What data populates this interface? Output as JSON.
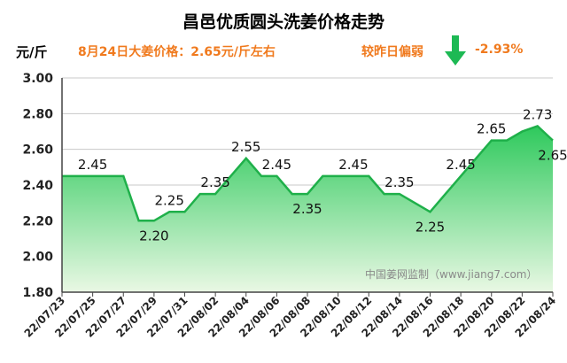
{
  "header": {
    "title": "昌邑优质圆头洗姜价格走势",
    "unit": "元/斤",
    "note_left": "8月24日大姜价格：2.65元/斤左右",
    "note_right": "较昨日偏弱",
    "note_change": "-2.93%",
    "trend_icon": "down-arrow-icon",
    "accent_color": "#f07a1e",
    "arrow_color": "#1db954"
  },
  "watermark": "中国姜网监制（www.jiang7.com）",
  "chart_data": {
    "type": "area",
    "title": "昌邑优质圆头洗姜价格走势",
    "ylabel": "元/斤",
    "xlabel": "",
    "ylim": [
      1.8,
      3.0
    ],
    "y_ticks": [
      "1.80",
      "2.00",
      "2.20",
      "2.40",
      "2.60",
      "2.80",
      "3.00"
    ],
    "grid": true,
    "x_ticks": [
      "22/07/23",
      "22/07/25",
      "22/07/27",
      "22/07/29",
      "22/07/31",
      "22/08/02",
      "22/08/04",
      "22/08/06",
      "22/08/08",
      "22/08/10",
      "22/08/12",
      "22/08/14",
      "22/08/16",
      "22/08/18",
      "22/08/20",
      "22/08/22",
      "22/08/24"
    ],
    "x": [
      "22/07/23",
      "22/07/24",
      "22/07/25",
      "22/07/26",
      "22/07/27",
      "22/07/28",
      "22/07/29",
      "22/07/30",
      "22/07/31",
      "22/08/01",
      "22/08/02",
      "22/08/03",
      "22/08/04",
      "22/08/05",
      "22/08/06",
      "22/08/07",
      "22/08/08",
      "22/08/09",
      "22/08/10",
      "22/08/11",
      "22/08/12",
      "22/08/13",
      "22/08/14",
      "22/08/15",
      "22/08/16",
      "22/08/17",
      "22/08/18",
      "22/08/19",
      "22/08/20",
      "22/08/21",
      "22/08/22",
      "22/08/23",
      "22/08/24"
    ],
    "values": [
      2.45,
      2.45,
      2.45,
      2.45,
      2.45,
      2.2,
      2.2,
      2.25,
      2.25,
      2.35,
      2.35,
      2.45,
      2.55,
      2.45,
      2.45,
      2.35,
      2.35,
      2.45,
      2.45,
      2.45,
      2.45,
      2.35,
      2.35,
      2.3,
      2.25,
      2.35,
      2.45,
      2.55,
      2.65,
      2.65,
      2.7,
      2.73,
      2.65
    ],
    "data_labels": [
      {
        "i": 2,
        "text": "2.45",
        "pos": "above"
      },
      {
        "i": 6,
        "text": "2.20",
        "pos": "below"
      },
      {
        "i": 7,
        "text": "2.25",
        "pos": "above"
      },
      {
        "i": 10,
        "text": "2.35",
        "pos": "above"
      },
      {
        "i": 12,
        "text": "2.55",
        "pos": "above"
      },
      {
        "i": 14,
        "text": "2.45",
        "pos": "above"
      },
      {
        "i": 16,
        "text": "2.35",
        "pos": "below"
      },
      {
        "i": 19,
        "text": "2.45",
        "pos": "above"
      },
      {
        "i": 22,
        "text": "2.35",
        "pos": "above"
      },
      {
        "i": 24,
        "text": "2.25",
        "pos": "below"
      },
      {
        "i": 26,
        "text": "2.45",
        "pos": "above"
      },
      {
        "i": 28,
        "text": "2.65",
        "pos": "above"
      },
      {
        "i": 31,
        "text": "2.73",
        "pos": "above"
      },
      {
        "i": 32,
        "text": "2.65",
        "pos": "below"
      }
    ],
    "colors": {
      "line": "#1fb04a",
      "fill_top": "#2ec95c",
      "fill_bottom": "#e6f7e0"
    }
  }
}
